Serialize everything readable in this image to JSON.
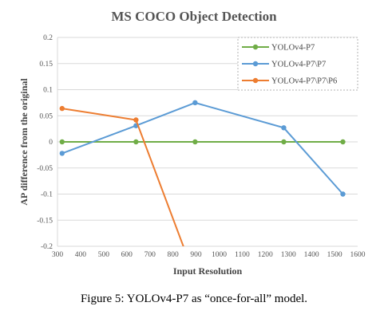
{
  "caption": "Figure 5: YOLOv4-P7 as “once-for-all” model.",
  "chart_data": {
    "type": "line",
    "title": "MS COCO Object Detection",
    "xlabel": "Input Resolution",
    "ylabel": "AP difference from the original",
    "xlim": [
      300,
      1600
    ],
    "ylim": [
      -0.2,
      0.2
    ],
    "x_ticks": [
      300,
      400,
      500,
      600,
      700,
      800,
      900,
      1000,
      1100,
      1200,
      1300,
      1400,
      1500,
      1600
    ],
    "y_ticks": [
      0.2,
      0.15,
      0.1,
      0.05,
      0,
      -0.05,
      -0.1,
      -0.15,
      -0.2
    ],
    "y_tick_labels": [
      "0.2",
      "0.15",
      "0.1",
      "0.05",
      "0",
      "-0.05",
      "-0.1",
      "-0.15",
      "-0.2"
    ],
    "grid": "horizontal",
    "legend_position": "top-right",
    "series": [
      {
        "name": "YOLOv4-P7",
        "color": "#70ad47",
        "x": [
          320,
          640,
          896,
          1280,
          1536
        ],
        "y": [
          0,
          0,
          0,
          0,
          0
        ]
      },
      {
        "name": "YOLOv4-P7\\P7",
        "color": "#5b9bd5",
        "x": [
          320,
          640,
          896,
          1280,
          1536
        ],
        "y": [
          -0.022,
          0.031,
          0.075,
          0.027,
          -0.1
        ]
      },
      {
        "name": "YOLOv4-P7\\P7\\P6",
        "color": "#ed7d31",
        "x": [
          320,
          640,
          896
        ],
        "y": [
          0.064,
          0.042,
          -0.26
        ]
      }
    ]
  }
}
